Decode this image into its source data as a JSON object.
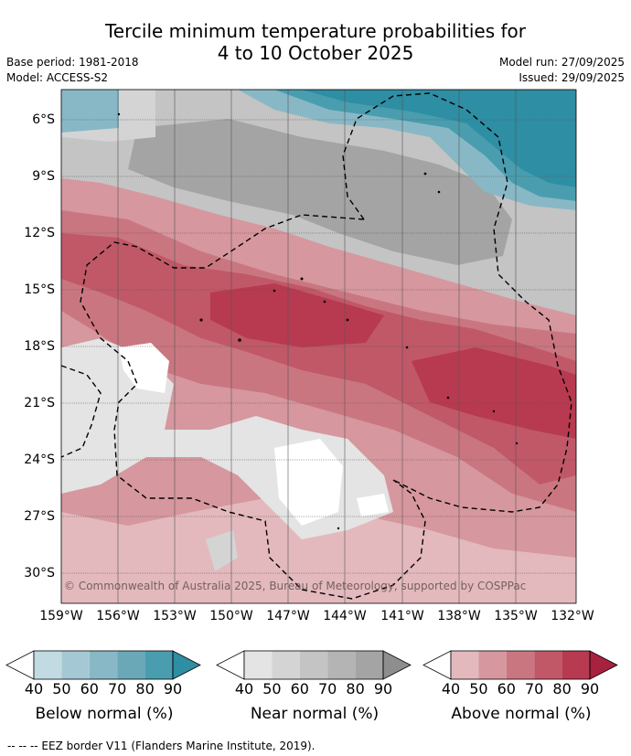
{
  "header": {
    "title_line1": "Tercile minimum temperature probabilities for",
    "title_line2": "4 to 10 October 2025",
    "base_period": "Base period: 1981-2018",
    "model": "Model: ACCESS-S2",
    "model_run": "Model run: 27/09/2025",
    "issued": "Issued: 29/09/2025"
  },
  "map": {
    "lat_labels": [
      "6°S",
      "9°S",
      "12°S",
      "15°S",
      "18°S",
      "21°S",
      "24°S",
      "27°S",
      "30°S"
    ],
    "lon_labels": [
      "159°W",
      "156°W",
      "153°W",
      "150°W",
      "147°W",
      "144°W",
      "141°W",
      "138°W",
      "135°W",
      "132°W"
    ],
    "credit": "© Commonwealth of Australia 2025, Bureau of Meteorology, supported by COSPPac",
    "lat_range": [
      -31.5,
      -4.5
    ],
    "lon_range": [
      -159,
      -131.9
    ]
  },
  "colorbars": {
    "ticks": [
      "40",
      "50",
      "60",
      "70",
      "80",
      "90"
    ],
    "below": {
      "label": "Below normal (%)",
      "colors": [
        "#c2dbe2",
        "#a5c9d4",
        "#88b8c6",
        "#6aa8b8",
        "#4a9dae",
        "#2e8ea3"
      ]
    },
    "near": {
      "label": "Near normal (%)",
      "colors": [
        "#e4e4e4",
        "#d4d4d4",
        "#c4c4c4",
        "#b4b4b4",
        "#a4a4a4",
        "#8e8e8e"
      ]
    },
    "above": {
      "label": "Above normal (%)",
      "colors": [
        "#e3b9bd",
        "#d6979e",
        "#ca7680",
        "#c05868",
        "#b83a50",
        "#a8213e"
      ]
    }
  },
  "footer": {
    "eez_note": "--  --  -- EEZ border V11 (Flanders Marine Institute, 2019)."
  }
}
